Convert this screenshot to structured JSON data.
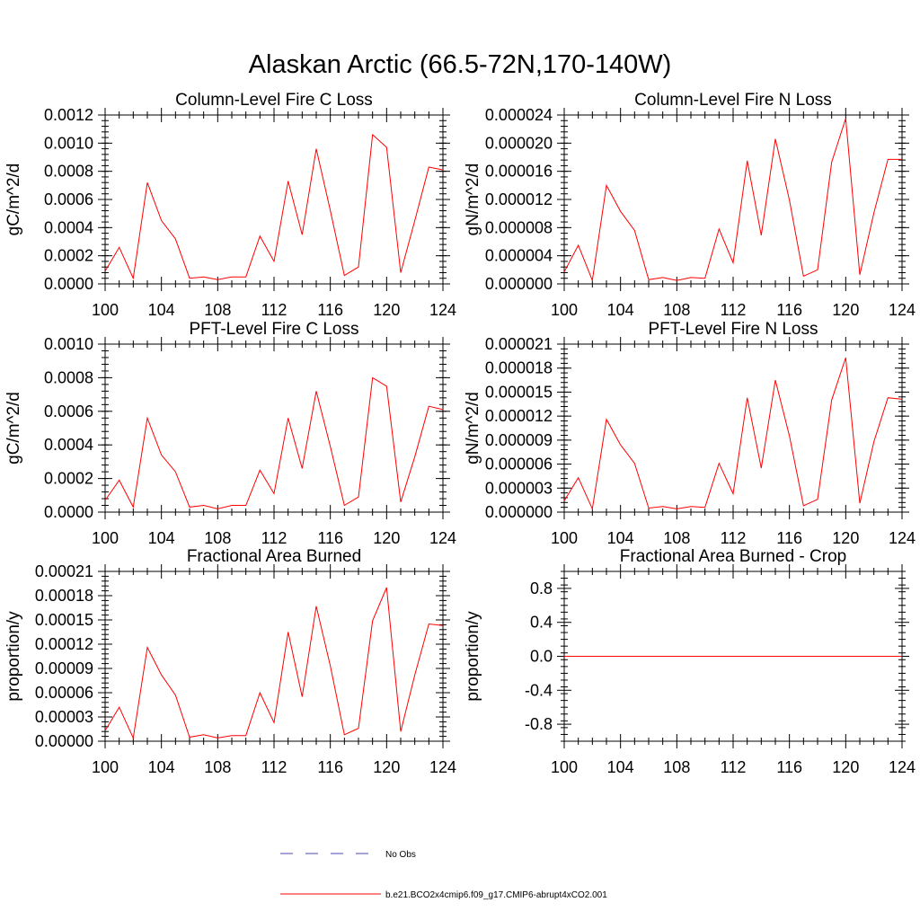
{
  "figure": {
    "title": "Alaskan Arctic (66.5-72N,170-140W)"
  },
  "legend": {
    "entries": [
      {
        "label": "No Obs",
        "color": "#4a4ab0",
        "style": "dashed"
      },
      {
        "label": "b.e21.BCO2x4cmip6.f09_g17.CMIP6-abrupt4xCO2.001",
        "color": "#ff0000",
        "style": "solid"
      }
    ]
  },
  "chart_data": [
    {
      "type": "line",
      "title": "Column-Level Fire C Loss",
      "ylabel": "gC/m^2/d",
      "xlim": [
        100,
        124
      ],
      "ylim": [
        0,
        0.0012
      ],
      "xticks": [
        "100",
        "104",
        "108",
        "112",
        "116",
        "120",
        "124"
      ],
      "yticks": [
        "0.0000",
        "0.0002",
        "0.0004",
        "0.0006",
        "0.0008",
        "0.0010",
        "0.0012"
      ],
      "x": [
        100,
        101,
        102,
        103,
        104,
        105,
        106,
        107,
        108,
        109,
        110,
        111,
        112,
        113,
        114,
        115,
        116,
        117,
        118,
        119,
        120,
        121,
        122,
        123,
        124
      ],
      "series": [
        {
          "name": "b.e21.BCO2x4cmip6.f09_g17.CMIP6-abrupt4xCO2.001",
          "color": "#ff0000",
          "values": [
            9e-05,
            0.00026,
            4e-05,
            0.00072,
            0.00045,
            0.00032,
            4e-05,
            5e-05,
            3e-05,
            5e-05,
            5e-05,
            0.00034,
            0.00016,
            0.00073,
            0.00035,
            0.00096,
            0.00052,
            6e-05,
            0.00012,
            0.00106,
            0.00097,
            8e-05,
            0.00045,
            0.00083,
            0.00081
          ]
        }
      ]
    },
    {
      "type": "line",
      "title": "Column-Level Fire N Loss",
      "ylabel": "gN/m^2/d",
      "xlim": [
        100,
        124
      ],
      "ylim": [
        0,
        2.4e-05
      ],
      "xticks": [
        "100",
        "104",
        "108",
        "112",
        "116",
        "120",
        "124"
      ],
      "yticks": [
        "0.000000",
        "0.000004",
        "0.000008",
        "0.000012",
        "0.000016",
        "0.000020",
        "0.000024"
      ],
      "x": [
        100,
        101,
        102,
        103,
        104,
        105,
        106,
        107,
        108,
        109,
        110,
        111,
        112,
        113,
        114,
        115,
        116,
        117,
        118,
        119,
        120,
        121,
        122,
        123,
        124
      ],
      "series": [
        {
          "name": "b.e21.BCO2x4cmip6.f09_g17.CMIP6-abrupt4xCO2.001",
          "color": "#ff0000",
          "values": [
            1.7e-06,
            5.5e-06,
            5e-07,
            1.4e-05,
            1.03e-05,
            7.6e-06,
            6e-07,
            9e-07,
            5e-07,
            9e-07,
            8e-07,
            7.8e-06,
            3e-06,
            1.75e-05,
            6.9e-06,
            2.06e-05,
            1.19e-05,
            1.1e-06,
            2e-06,
            1.73e-05,
            2.35e-05,
            1.3e-06,
            1.01e-05,
            1.77e-05,
            1.77e-05
          ]
        }
      ]
    },
    {
      "type": "line",
      "title": "PFT-Level Fire C Loss",
      "ylabel": "gC/m^2/d",
      "xlim": [
        100,
        124
      ],
      "ylim": [
        0,
        0.001
      ],
      "xticks": [
        "100",
        "104",
        "108",
        "112",
        "116",
        "120",
        "124"
      ],
      "yticks": [
        "0.0000",
        "0.0002",
        "0.0004",
        "0.0006",
        "0.0008",
        "0.0010"
      ],
      "x": [
        100,
        101,
        102,
        103,
        104,
        105,
        106,
        107,
        108,
        109,
        110,
        111,
        112,
        113,
        114,
        115,
        116,
        117,
        118,
        119,
        120,
        121,
        122,
        123,
        124
      ],
      "series": [
        {
          "name": "b.e21.BCO2x4cmip6.f09_g17.CMIP6-abrupt4xCO2.001",
          "color": "#ff0000",
          "values": [
            7e-05,
            0.00019,
            3e-05,
            0.00056,
            0.00034,
            0.00024,
            3e-05,
            4e-05,
            2e-05,
            4e-05,
            4e-05,
            0.00025,
            0.00011,
            0.00056,
            0.00026,
            0.00072,
            0.00039,
            4e-05,
            9e-05,
            0.0008,
            0.00075,
            6e-05,
            0.00033,
            0.00063,
            0.00061
          ]
        }
      ]
    },
    {
      "type": "line",
      "title": "PFT-Level Fire N Loss",
      "ylabel": "gN/m^2/d",
      "xlim": [
        100,
        124
      ],
      "ylim": [
        0,
        2.1e-05
      ],
      "xticks": [
        "100",
        "104",
        "108",
        "112",
        "116",
        "120",
        "124"
      ],
      "yticks": [
        "0.000000",
        "0.000003",
        "0.000006",
        "0.000009",
        "0.000012",
        "0.000015",
        "0.000018",
        "0.000021"
      ],
      "x": [
        100,
        101,
        102,
        103,
        104,
        105,
        106,
        107,
        108,
        109,
        110,
        111,
        112,
        113,
        114,
        115,
        116,
        117,
        118,
        119,
        120,
        121,
        122,
        123,
        124
      ],
      "series": [
        {
          "name": "b.e21.BCO2x4cmip6.f09_g17.CMIP6-abrupt4xCO2.001",
          "color": "#ff0000",
          "values": [
            1.4e-06,
            4.3e-06,
            4e-07,
            1.16e-05,
            8.4e-06,
            6.1e-06,
            5e-07,
            7e-07,
            4e-07,
            7e-07,
            6e-07,
            6.1e-06,
            2.3e-06,
            1.43e-05,
            5.5e-06,
            1.65e-05,
            9.5e-06,
            8e-07,
            1.6e-06,
            1.4e-05,
            1.93e-05,
            1.1e-06,
            8.8e-06,
            1.43e-05,
            1.41e-05
          ]
        }
      ]
    },
    {
      "type": "line",
      "title": "Fractional Area Burned",
      "ylabel": "proportion/y",
      "xlim": [
        100,
        124
      ],
      "ylim": [
        0,
        0.00021
      ],
      "xticks": [
        "100",
        "104",
        "108",
        "112",
        "116",
        "120",
        "124"
      ],
      "yticks": [
        "0.00000",
        "0.00003",
        "0.00006",
        "0.00009",
        "0.00012",
        "0.00015",
        "0.00018",
        "0.00021"
      ],
      "x": [
        100,
        101,
        102,
        103,
        104,
        105,
        106,
        107,
        108,
        109,
        110,
        111,
        112,
        113,
        114,
        115,
        116,
        117,
        118,
        119,
        120,
        121,
        122,
        123,
        124
      ],
      "series": [
        {
          "name": "b.e21.BCO2x4cmip6.f09_g17.CMIP6-abrupt4xCO2.001",
          "color": "#ff0000",
          "values": [
            1.3e-05,
            4.2e-05,
            4e-06,
            0.000116,
            8.2e-05,
            5.7e-05,
            5e-06,
            8e-06,
            4e-06,
            7e-06,
            7e-06,
            6e-05,
            2.3e-05,
            0.000135,
            5.5e-05,
            0.000167,
            9.3e-05,
            8e-06,
            1.6e-05,
            0.000149,
            0.00019,
            1.2e-05,
            8.2e-05,
            0.000145,
            0.000143
          ]
        }
      ]
    },
    {
      "type": "line",
      "title": "Fractional Area Burned - Crop",
      "ylabel": "proportion/y",
      "xlim": [
        100,
        124
      ],
      "ylim": [
        -1,
        1
      ],
      "xticks": [
        "100",
        "104",
        "108",
        "112",
        "116",
        "120",
        "124"
      ],
      "yticks": [
        "-0.8",
        "-0.4",
        "0.0",
        "0.4",
        "0.8"
      ],
      "x": [
        100,
        101,
        102,
        103,
        104,
        105,
        106,
        107,
        108,
        109,
        110,
        111,
        112,
        113,
        114,
        115,
        116,
        117,
        118,
        119,
        120,
        121,
        122,
        123,
        124
      ],
      "series": [
        {
          "name": "b.e21.BCO2x4cmip6.f09_g17.CMIP6-abrupt4xCO2.001",
          "color": "#ff0000",
          "values": [
            0,
            0,
            0,
            0,
            0,
            0,
            0,
            0,
            0,
            0,
            0,
            0,
            0,
            0,
            0,
            0,
            0,
            0,
            0,
            0,
            0,
            0,
            0,
            0,
            0
          ]
        }
      ]
    }
  ]
}
